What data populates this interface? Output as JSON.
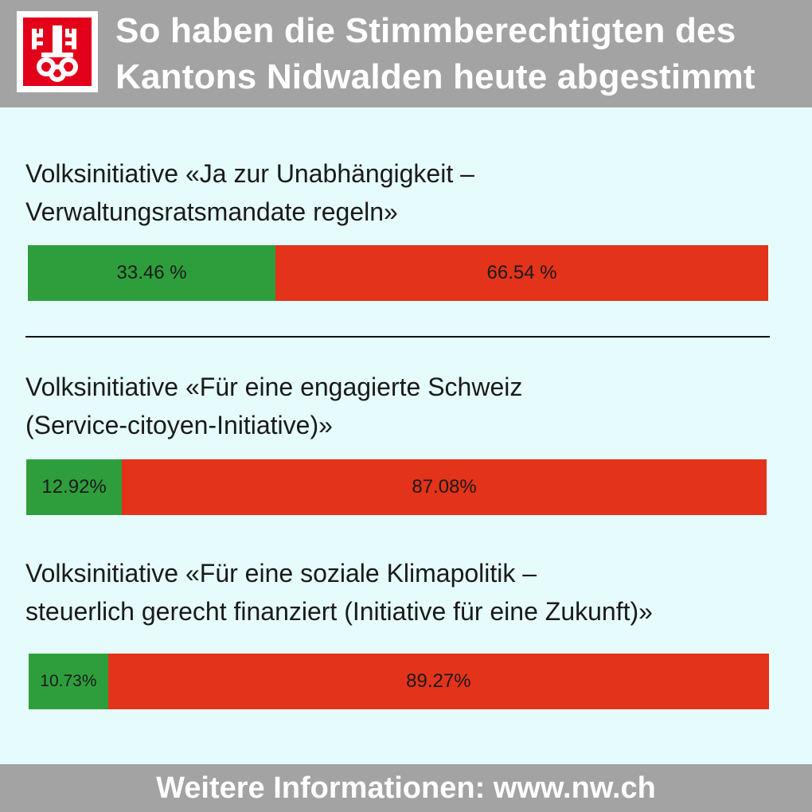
{
  "header": {
    "title_line1": "So haben die Stimmberechtigten des",
    "title_line2": "Kantons Nidwalden heute abgestimmt",
    "logo_icon": "nidwalden-coat-of-arms-icon"
  },
  "colors": {
    "yes": "#2e9e3c",
    "no": "#e3331a",
    "header_bg": "#a3a3a3",
    "page_bg": "#e6fbfb"
  },
  "chart_data": [
    {
      "type": "bar",
      "title_line1": "Volksinitiative «Ja zur Unabhängigkeit –",
      "title_line2": "Verwaltungsratsmandate regeln»",
      "yes_value": 33.46,
      "no_value": 66.54,
      "yes_label": "33.46 %",
      "no_label": "66.54 %"
    },
    {
      "type": "bar",
      "title_line1": "Volksinitiative «Für eine engagierte Schweiz",
      "title_line2": "(Service-citoyen-Initiative)»",
      "yes_value": 12.92,
      "no_value": 87.08,
      "yes_label": "12.92%",
      "no_label": "87.08%"
    },
    {
      "type": "bar",
      "title_line1": "Volksinitiative «Für eine soziale Klimapolitik –",
      "title_line2": "steuerlich gerecht finanziert (Initiative für eine Zukunft)»",
      "yes_value": 10.73,
      "no_value": 89.27,
      "yes_label": "10.73%",
      "no_label": "89.27%"
    }
  ],
  "footer": {
    "text": "Weitere Informationen: www.nw.ch"
  }
}
